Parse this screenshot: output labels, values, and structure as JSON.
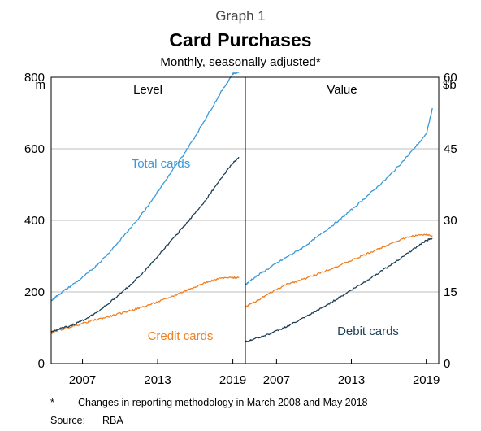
{
  "graph_number": "Graph 1",
  "title": "Card Purchases",
  "subtitle": "Monthly, seasonally adjusted*",
  "footnote_marker": "*",
  "footnote_text": "Changes in reporting methodology in March 2008 and May 2018",
  "source_label": "Source:",
  "source_text": "RBA",
  "colors": {
    "total_cards": "#3a9ad9",
    "credit_cards": "#f07f1f",
    "debit_cards": "#1d3f55",
    "gridline": "#bdbdbd",
    "axis": "#000000"
  },
  "chart_data": [
    {
      "type": "line",
      "panel_title": "Level",
      "unit_label": "m",
      "unit_side": "left",
      "x_ticks": [
        "2007",
        "2013",
        "2019"
      ],
      "x_range": [
        2004.5,
        2020.0
      ],
      "ylim": [
        0,
        800
      ],
      "y_ticks": [
        0,
        200,
        400,
        600,
        800
      ],
      "grid": true,
      "series": [
        {
          "name": "Total cards",
          "color_key": "total_cards",
          "x": [
            2004.5,
            2005,
            2006,
            2007,
            2008,
            2009,
            2010,
            2011,
            2012,
            2013,
            2014,
            2015,
            2016,
            2017,
            2018,
            2019,
            2019.5
          ],
          "y": [
            175,
            190,
            215,
            240,
            270,
            305,
            345,
            385,
            430,
            480,
            530,
            580,
            635,
            695,
            755,
            810,
            815
          ]
        },
        {
          "name": "Credit cards",
          "color_key": "credit_cards",
          "x": [
            2004.5,
            2005,
            2006,
            2007,
            2008,
            2009,
            2010,
            2011,
            2012,
            2013,
            2014,
            2015,
            2016,
            2017,
            2018,
            2019,
            2019.5
          ],
          "y": [
            85,
            92,
            102,
            112,
            122,
            130,
            140,
            150,
            160,
            172,
            185,
            200,
            215,
            228,
            238,
            240,
            240
          ]
        },
        {
          "name": "Debit cards",
          "label_shown": false,
          "color_key": "debit_cards",
          "x": [
            2004.5,
            2005,
            2006,
            2007,
            2008,
            2009,
            2010,
            2011,
            2012,
            2013,
            2014,
            2015,
            2016,
            2017,
            2018,
            2019,
            2019.5
          ],
          "y": [
            88,
            95,
            105,
            120,
            140,
            165,
            195,
            225,
            260,
            300,
            340,
            380,
            420,
            465,
            515,
            560,
            575
          ]
        }
      ]
    },
    {
      "type": "line",
      "panel_title": "Value",
      "unit_label": "$b",
      "unit_side": "right",
      "x_ticks": [
        "2007",
        "2013",
        "2019"
      ],
      "x_range": [
        2004.5,
        2020.0
      ],
      "ylim": [
        0,
        60
      ],
      "y_ticks": [
        0,
        15,
        30,
        45,
        60
      ],
      "grid": true,
      "series": [
        {
          "name": "Total cards",
          "label_shown": false,
          "color_key": "total_cards",
          "x": [
            2004.5,
            2005,
            2006,
            2007,
            2008,
            2009,
            2010,
            2011,
            2012,
            2013,
            2014,
            2015,
            2016,
            2017,
            2018,
            2019,
            2019.5
          ],
          "y": [
            16.5,
            17.6,
            19.3,
            21,
            22.6,
            24.1,
            26,
            28,
            30,
            32.2,
            34.5,
            36.8,
            39.2,
            42,
            45,
            48,
            53.5
          ]
        },
        {
          "name": "Credit cards",
          "label_shown": false,
          "color_key": "credit_cards",
          "x": [
            2004.5,
            2005,
            2006,
            2007,
            2008,
            2009,
            2010,
            2011,
            2012,
            2013,
            2014,
            2015,
            2016,
            2017,
            2018,
            2019,
            2019.5
          ],
          "y": [
            11.8,
            12.6,
            14,
            15.5,
            16.8,
            17.5,
            18.5,
            19.5,
            20.5,
            21.6,
            22.7,
            23.8,
            25,
            26,
            26.8,
            27,
            26.8
          ]
        },
        {
          "name": "Debit cards",
          "color_key": "debit_cards",
          "x": [
            2004.5,
            2005,
            2006,
            2007,
            2008,
            2009,
            2010,
            2011,
            2012,
            2013,
            2014,
            2015,
            2016,
            2017,
            2018,
            2019,
            2019.5
          ],
          "y": [
            4.5,
            5,
            5.8,
            6.8,
            8,
            9.3,
            10.7,
            12.2,
            13.8,
            15.4,
            17,
            18.7,
            20.4,
            22.2,
            24,
            25.8,
            26.2
          ]
        }
      ]
    }
  ]
}
